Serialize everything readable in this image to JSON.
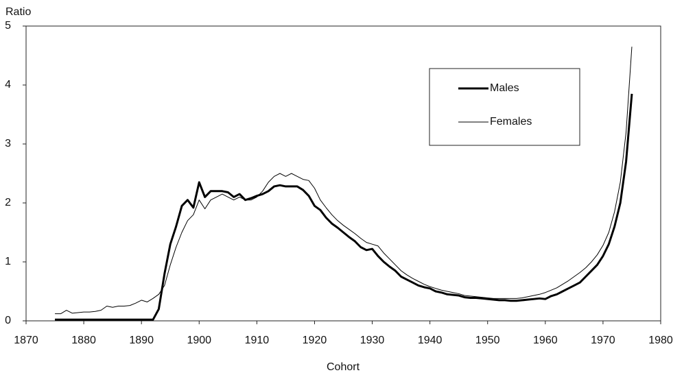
{
  "chart_data": {
    "type": "line",
    "ylabel": "Ratio",
    "xlabel": "Cohort",
    "x": [
      1875,
      1876,
      1877,
      1878,
      1879,
      1880,
      1881,
      1882,
      1883,
      1884,
      1885,
      1886,
      1887,
      1888,
      1889,
      1890,
      1891,
      1892,
      1893,
      1894,
      1895,
      1896,
      1897,
      1898,
      1899,
      1900,
      1901,
      1902,
      1903,
      1904,
      1905,
      1906,
      1907,
      1908,
      1909,
      1910,
      1911,
      1912,
      1913,
      1914,
      1915,
      1916,
      1917,
      1918,
      1919,
      1920,
      1921,
      1922,
      1923,
      1924,
      1925,
      1926,
      1927,
      1928,
      1929,
      1930,
      1931,
      1932,
      1933,
      1934,
      1935,
      1936,
      1937,
      1938,
      1939,
      1940,
      1941,
      1942,
      1943,
      1944,
      1945,
      1946,
      1947,
      1948,
      1949,
      1950,
      1951,
      1952,
      1953,
      1954,
      1955,
      1956,
      1957,
      1958,
      1959,
      1960,
      1961,
      1962,
      1963,
      1964,
      1965,
      1966,
      1967,
      1968,
      1969,
      1970,
      1971,
      1972,
      1973,
      1974,
      1975
    ],
    "series": [
      {
        "name": "Males",
        "color": "#000000",
        "linewidth": 3,
        "values": [
          0.02,
          0.02,
          0.02,
          0.02,
          0.02,
          0.02,
          0.02,
          0.02,
          0.02,
          0.02,
          0.02,
          0.02,
          0.02,
          0.02,
          0.02,
          0.02,
          0.02,
          0.02,
          0.2,
          0.8,
          1.3,
          1.6,
          1.95,
          2.05,
          1.92,
          2.35,
          2.1,
          2.2,
          2.2,
          2.2,
          2.18,
          2.1,
          2.15,
          2.05,
          2.08,
          2.12,
          2.15,
          2.2,
          2.28,
          2.3,
          2.28,
          2.28,
          2.28,
          2.22,
          2.12,
          1.95,
          1.88,
          1.75,
          1.65,
          1.58,
          1.5,
          1.42,
          1.35,
          1.25,
          1.2,
          1.22,
          1.1,
          1.0,
          0.92,
          0.85,
          0.75,
          0.7,
          0.65,
          0.6,
          0.57,
          0.55,
          0.5,
          0.48,
          0.45,
          0.44,
          0.43,
          0.4,
          0.39,
          0.39,
          0.38,
          0.37,
          0.36,
          0.35,
          0.35,
          0.34,
          0.34,
          0.35,
          0.36,
          0.37,
          0.38,
          0.37,
          0.42,
          0.45,
          0.5,
          0.55,
          0.6,
          0.65,
          0.75,
          0.85,
          0.95,
          1.1,
          1.3,
          1.6,
          2.0,
          2.7,
          3.85
        ]
      },
      {
        "name": "Females",
        "color": "#000000",
        "linewidth": 1,
        "values": [
          0.12,
          0.12,
          0.18,
          0.13,
          0.14,
          0.15,
          0.15,
          0.16,
          0.18,
          0.25,
          0.23,
          0.25,
          0.25,
          0.26,
          0.3,
          0.35,
          0.32,
          0.38,
          0.45,
          0.6,
          0.95,
          1.25,
          1.5,
          1.7,
          1.8,
          2.05,
          1.9,
          2.05,
          2.1,
          2.15,
          2.1,
          2.05,
          2.1,
          2.05,
          2.05,
          2.1,
          2.2,
          2.35,
          2.45,
          2.5,
          2.45,
          2.5,
          2.45,
          2.4,
          2.38,
          2.25,
          2.05,
          1.92,
          1.8,
          1.7,
          1.62,
          1.55,
          1.48,
          1.4,
          1.33,
          1.3,
          1.27,
          1.15,
          1.05,
          0.95,
          0.85,
          0.78,
          0.72,
          0.67,
          0.62,
          0.58,
          0.55,
          0.52,
          0.5,
          0.48,
          0.46,
          0.43,
          0.42,
          0.41,
          0.4,
          0.39,
          0.38,
          0.38,
          0.38,
          0.38,
          0.38,
          0.39,
          0.41,
          0.43,
          0.45,
          0.48,
          0.52,
          0.56,
          0.62,
          0.68,
          0.75,
          0.82,
          0.9,
          1.0,
          1.12,
          1.28,
          1.5,
          1.85,
          2.35,
          3.2,
          4.65
        ]
      }
    ],
    "xlim": [
      1870,
      1980
    ],
    "xticks": [
      1870,
      1880,
      1890,
      1900,
      1910,
      1920,
      1930,
      1940,
      1950,
      1960,
      1970,
      1980
    ],
    "ylim": [
      0,
      5
    ],
    "yticks": [
      0,
      1,
      2,
      3,
      4,
      5
    ],
    "grid": false,
    "legend": "upper right"
  }
}
